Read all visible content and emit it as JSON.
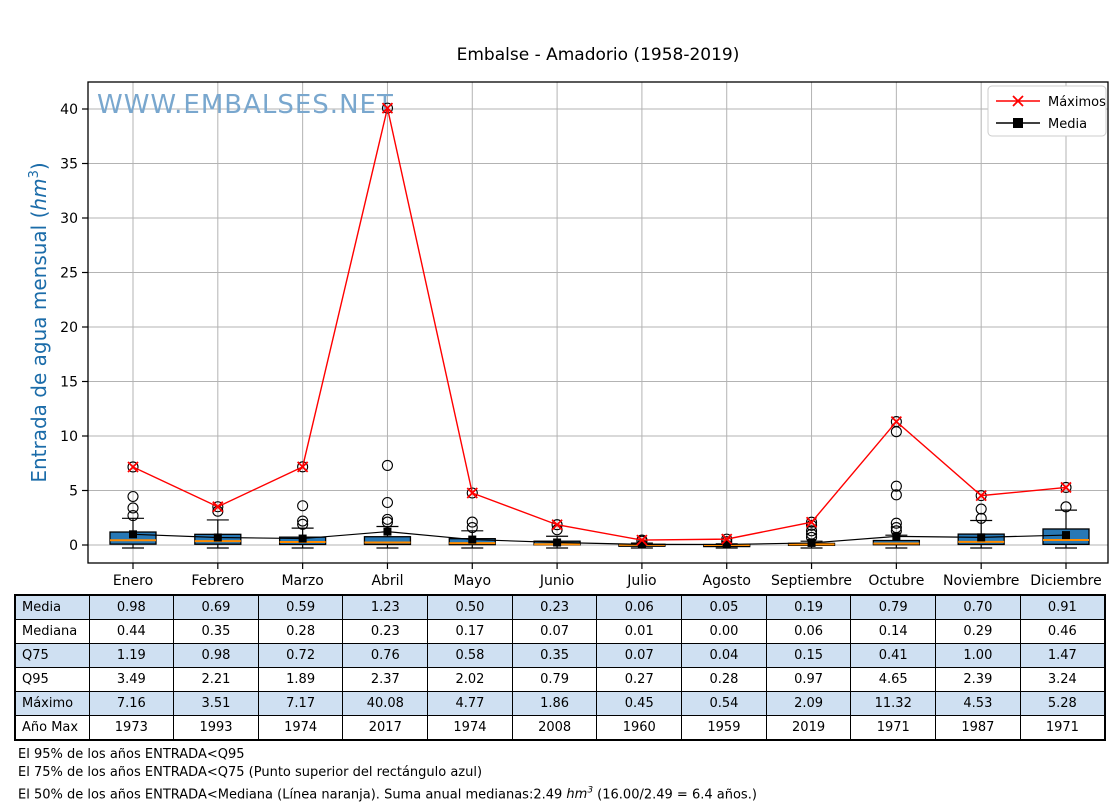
{
  "chart_data": {
    "type": "boxplot",
    "title": "Embalse - Amadorio (1958-2019)",
    "watermark": "WWW.EMBALSES.NET",
    "ylabel": {
      "text": "Entrada de agua mensual (",
      "unit": "hm",
      "exponent": "3",
      "close": ")"
    },
    "categories": [
      "Enero",
      "Febrero",
      "Marzo",
      "Abril",
      "Mayo",
      "Junio",
      "Julio",
      "Agosto",
      "Septiembre",
      "Octubre",
      "Noviembre",
      "Diciembre"
    ],
    "yticks": [
      0,
      5,
      10,
      15,
      20,
      25,
      30,
      35,
      40
    ],
    "ylim": [
      -1.7,
      42.5
    ],
    "grid": true,
    "legend": {
      "position": "top-right",
      "entries": [
        {
          "label": "Máximos",
          "marker": "x",
          "color": "#ff0000"
        },
        {
          "label": "Media",
          "marker": "square",
          "color": "#000000"
        }
      ]
    },
    "series": [
      {
        "name": "Máximos",
        "color": "#ff0000",
        "marker": "x",
        "values": [
          7.16,
          3.51,
          7.17,
          40.08,
          4.77,
          1.86,
          0.45,
          0.54,
          2.09,
          11.32,
          4.53,
          5.28
        ]
      },
      {
        "name": "Media",
        "color": "#000000",
        "marker": "square",
        "values": [
          0.98,
          0.69,
          0.59,
          1.23,
          0.5,
          0.23,
          0.06,
          0.05,
          0.19,
          0.79,
          0.7,
          0.91
        ]
      }
    ],
    "boxplots": [
      {
        "month": "Enero",
        "q1": 0.08,
        "median": 0.44,
        "q3": 1.19,
        "whisker_low": 0,
        "whisker_high": 2.45,
        "outliers": [
          2.7,
          3.4,
          4.45,
          7.16
        ]
      },
      {
        "month": "Febrero",
        "q1": 0.07,
        "median": 0.35,
        "q3": 0.98,
        "whisker_low": 0,
        "whisker_high": 2.3,
        "outliers": [
          3.1,
          3.51
        ]
      },
      {
        "month": "Marzo",
        "q1": 0.05,
        "median": 0.28,
        "q3": 0.72,
        "whisker_low": 0,
        "whisker_high": 1.55,
        "outliers": [
          1.9,
          2.2,
          3.6,
          7.17
        ]
      },
      {
        "month": "Abril",
        "q1": 0.05,
        "median": 0.23,
        "q3": 0.76,
        "whisker_low": 0,
        "whisker_high": 1.7,
        "outliers": [
          2.1,
          2.35,
          3.9,
          7.3,
          40.08
        ]
      },
      {
        "month": "Mayo",
        "q1": 0.03,
        "median": 0.17,
        "q3": 0.58,
        "whisker_low": 0,
        "whisker_high": 1.3,
        "outliers": [
          1.6,
          2.1,
          4.77
        ]
      },
      {
        "month": "Junio",
        "q1": 0.01,
        "median": 0.07,
        "q3": 0.35,
        "whisker_low": 0,
        "whisker_high": 0.8,
        "outliers": [
          1.4,
          1.86
        ]
      },
      {
        "month": "Julio",
        "q1": 0.0,
        "median": 0.01,
        "q3": 0.07,
        "whisker_low": 0,
        "whisker_high": 0.17,
        "outliers": [
          0.35,
          0.45
        ]
      },
      {
        "month": "Agosto",
        "q1": 0.0,
        "median": 0.0,
        "q3": 0.04,
        "whisker_low": 0,
        "whisker_high": 0.1,
        "outliers": [
          0.3,
          0.54
        ]
      },
      {
        "month": "Septiembre",
        "q1": 0.01,
        "median": 0.06,
        "q3": 0.15,
        "whisker_low": 0,
        "whisker_high": 0.35,
        "outliers": [
          0.7,
          1.0,
          1.3,
          1.8,
          2.09
        ]
      },
      {
        "month": "Octubre",
        "q1": 0.02,
        "median": 0.14,
        "q3": 0.41,
        "whisker_low": 0,
        "whisker_high": 0.9,
        "outliers": [
          1.3,
          1.6,
          2.0,
          4.6,
          5.4,
          10.4,
          11.32
        ]
      },
      {
        "month": "Noviembre",
        "q1": 0.05,
        "median": 0.29,
        "q3": 1.0,
        "whisker_low": 0,
        "whisker_high": 2.25,
        "outliers": [
          2.45,
          3.3,
          4.53
        ]
      },
      {
        "month": "Diciembre",
        "q1": 0.06,
        "median": 0.46,
        "q3": 1.47,
        "whisker_low": 0,
        "whisker_high": 3.2,
        "outliers": [
          3.5,
          5.28
        ]
      }
    ],
    "colors": {
      "box_fill": "#2878b5",
      "box_edge": "#000000",
      "median": "#ff8c00",
      "maximos": "#ff0000",
      "media": "#000000",
      "grid": "#b3b3b3",
      "watermark": "#79a7ce",
      "ylabel": "#1b6ca9",
      "legend_border": "#cccccc"
    }
  },
  "table": {
    "row_labels": [
      "Media",
      "Mediana",
      "Q75",
      "Q95",
      "Máximo",
      "Año Max"
    ],
    "columns": [
      "Enero",
      "Febrero",
      "Marzo",
      "Abril",
      "Mayo",
      "Junio",
      "Julio",
      "Agosto",
      "Septiembre",
      "Octubre",
      "Noviembre",
      "Diciembre"
    ],
    "rows": [
      [
        "0.98",
        "0.69",
        "0.59",
        "1.23",
        "0.50",
        "0.23",
        "0.06",
        "0.05",
        "0.19",
        "0.79",
        "0.70",
        "0.91"
      ],
      [
        "0.44",
        "0.35",
        "0.28",
        "0.23",
        "0.17",
        "0.07",
        "0.01",
        "0.00",
        "0.06",
        "0.14",
        "0.29",
        "0.46"
      ],
      [
        "1.19",
        "0.98",
        "0.72",
        "0.76",
        "0.58",
        "0.35",
        "0.07",
        "0.04",
        "0.15",
        "0.41",
        "1.00",
        "1.47"
      ],
      [
        "3.49",
        "2.21",
        "1.89",
        "2.37",
        "2.02",
        "0.79",
        "0.27",
        "0.28",
        "0.97",
        "4.65",
        "2.39",
        "3.24"
      ],
      [
        "7.16",
        "3.51",
        "7.17",
        "40.08",
        "4.77",
        "1.86",
        "0.45",
        "0.54",
        "2.09",
        "11.32",
        "4.53",
        "5.28"
      ],
      [
        "1973",
        "1993",
        "1974",
        "2017",
        "1974",
        "2008",
        "1960",
        "1959",
        "2019",
        "1971",
        "1987",
        "1971"
      ]
    ],
    "shaded_rows": [
      0,
      2,
      4
    ],
    "shade_color": "#cfe0f2"
  },
  "footer": {
    "line1": "El 95% de los años ENTRADA<Q95",
    "line2": "El 75% de los años ENTRADA<Q75 (Punto superior del rectángulo azul)",
    "line3_prefix": "El 50% de los años ENTRADA<Mediana (Línea naranja). Suma anual medianas:2.49 ",
    "line3_unit": "hm",
    "line3_sup": "3",
    "line3_suffix": " (16.00/2.49 = 6.4 años.)"
  }
}
